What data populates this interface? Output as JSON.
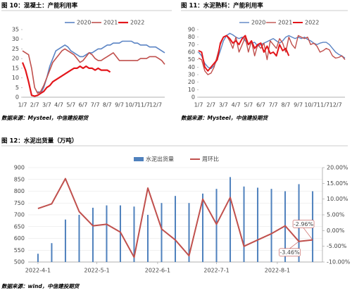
{
  "chart_data": [
    {
      "type": "line",
      "title": "图 10：混凝土：产能利用率",
      "source": "数据来源：Mysteel，中信建投期货",
      "categories": [
        "1/7",
        null,
        null,
        null,
        "2/7",
        null,
        null,
        null,
        "3/7",
        null,
        null,
        null,
        "4/7",
        null,
        null,
        null,
        "5/7",
        null,
        null,
        null,
        "6/7",
        null,
        null,
        null,
        "7/7",
        null,
        null,
        null,
        "8/7",
        null,
        null,
        null,
        "9/7",
        null,
        null,
        null,
        "10/7",
        null,
        null,
        null,
        "11/7",
        null,
        null,
        null,
        "12/7",
        null,
        null,
        null
      ],
      "ylim": [
        0,
        35
      ],
      "yticks": [
        0,
        5,
        10,
        15,
        20,
        25,
        30,
        35
      ],
      "series": [
        {
          "name": "2020",
          "color": "#5b84c4",
          "width": 1.6,
          "values": [
            null,
            null,
            null,
            null,
            null,
            3,
            2,
            5,
            10,
            16,
            20,
            24,
            25,
            26,
            27,
            26,
            24,
            23,
            22,
            21,
            21,
            22,
            23,
            23,
            24,
            25,
            25,
            26,
            27,
            27,
            28,
            28,
            28,
            29,
            29,
            29,
            29,
            28,
            28,
            27,
            27,
            27,
            26,
            26,
            26,
            25,
            24,
            23
          ]
        },
        {
          "name": "2021",
          "color": "#c0504d",
          "width": 1.6,
          "values": [
            24,
            23,
            22,
            15,
            5,
            2,
            3,
            6,
            10,
            14,
            18,
            20,
            22,
            24,
            25,
            24,
            23,
            22,
            20,
            18,
            19,
            21,
            23,
            22,
            20,
            19,
            19,
            20,
            21,
            22,
            23,
            21,
            19,
            19,
            19,
            19,
            19,
            19,
            19,
            20,
            20,
            20,
            21,
            21,
            21,
            20,
            19,
            17
          ]
        },
        {
          "name": "2022",
          "color": "#e3161b",
          "width": 2.2,
          "values": [
            18,
            14,
            8,
            1,
            0.5,
            1,
            2,
            3,
            5,
            6,
            8,
            9,
            10,
            11,
            12,
            13,
            14,
            15,
            15,
            16,
            15,
            16,
            15,
            15,
            14,
            15,
            14,
            14,
            14,
            13,
            null,
            null,
            null,
            null,
            null,
            null,
            null,
            null,
            null,
            null,
            null,
            null,
            null,
            null,
            null,
            null,
            null,
            null
          ]
        }
      ]
    },
    {
      "type": "line",
      "title": "图 11：水泥熟料：产能利用率",
      "source": "数据来源：Mysteel，中信建投期货",
      "categories": [
        "1/7",
        null,
        null,
        null,
        "2/7",
        null,
        null,
        null,
        "3/7",
        null,
        null,
        null,
        "4/7",
        null,
        null,
        null,
        "5/7",
        null,
        null,
        null,
        "6/7",
        null,
        null,
        null,
        "7/7",
        null,
        null,
        null,
        "8/7",
        null,
        null,
        null,
        "9/7",
        null,
        null,
        null,
        "10/7",
        null,
        null,
        null,
        "11/7",
        null,
        null,
        null,
        "12/7",
        null,
        null,
        null
      ],
      "ylim": [
        0,
        90
      ],
      "yticks": [
        0,
        10,
        20,
        30,
        40,
        50,
        60,
        70,
        80,
        90
      ],
      "series": [
        {
          "name": "2020",
          "color": "#5b84c4",
          "width": 1.4,
          "values": [
            60,
            55,
            45,
            40,
            38,
            42,
            50,
            62,
            75,
            82,
            85,
            83,
            80,
            78,
            80,
            75,
            70,
            72,
            73,
            68,
            70,
            72,
            74,
            76,
            78,
            75,
            72,
            75,
            80,
            82,
            80,
            78,
            80,
            78,
            80,
            77,
            75,
            72,
            70,
            72,
            73,
            73,
            70,
            65,
            60,
            57,
            55,
            52
          ]
        },
        {
          "name": "2021",
          "color": "#c0504d",
          "width": 1.4,
          "values": [
            52,
            50,
            35,
            30,
            32,
            40,
            55,
            70,
            80,
            82,
            75,
            65,
            80,
            60,
            70,
            80,
            60,
            75,
            55,
            70,
            65,
            72,
            50,
            75,
            70,
            65,
            78,
            72,
            60,
            80,
            70,
            65,
            82,
            80,
            78,
            80,
            70,
            72,
            68,
            60,
            62,
            65,
            63,
            55,
            52,
            53,
            55,
            50
          ]
        },
        {
          "name": "2022",
          "color": "#e3161b",
          "width": 2,
          "values": [
            62,
            60,
            40,
            35,
            40,
            45,
            50,
            72,
            80,
            82,
            78,
            72,
            75,
            70,
            78,
            82,
            70,
            75,
            65,
            70,
            72,
            60,
            68,
            58,
            60,
            55,
            70,
            62,
            65,
            55,
            null,
            null,
            null,
            null,
            null,
            null,
            null,
            null,
            null,
            null,
            null,
            null,
            null,
            null,
            null,
            null,
            null,
            null
          ]
        }
      ]
    },
    {
      "type": "combo",
      "title": "图 12：水泥出货量（万吨）",
      "source": "数据来源：wind，中信建投期货",
      "x": [
        "2022-04-01",
        "2022-04-08",
        "2022-04-15",
        "2022-04-22",
        "2022-04-29",
        "2022-05-06",
        "2022-05-13",
        "2022-05-20",
        "2022-05-27",
        "2022-06-03",
        "2022-06-10",
        "2022-06-17",
        "2022-06-24",
        "2022-07-01",
        "2022-07-08",
        "2022-07-15",
        "2022-07-22",
        "2022-07-29",
        "2022-08-05",
        "2022-08-12",
        "2022-08-19"
      ],
      "xlim": [
        "2022-03-27",
        "2022-08-24"
      ],
      "xticks": [
        {
          "value": "2022-04-01",
          "label": "2022-4-1"
        },
        {
          "value": "2022-05-01",
          "label": "2022-5-1"
        },
        {
          "value": "2022-06-01",
          "label": "2022-6-1"
        },
        {
          "value": "2022-07-01",
          "label": "2022-7-1"
        },
        {
          "value": "2022-08-01",
          "label": "2022-8-1"
        }
      ],
      "ylim": [
        500,
        900
      ],
      "yticks": [
        500,
        550,
        600,
        650,
        700,
        750,
        800,
        850,
        900
      ],
      "y2lim": [
        -10,
        20
      ],
      "y2ticks": [
        {
          "value": -10,
          "label": "-10.00%"
        },
        {
          "value": -5,
          "label": "-5.00%"
        },
        {
          "value": 0,
          "label": "0.00%"
        },
        {
          "value": 5,
          "label": "5.00%"
        },
        {
          "value": 10,
          "label": "10.00%"
        },
        {
          "value": 15,
          "label": "15.00%"
        },
        {
          "value": 20,
          "label": "20.00%"
        }
      ],
      "grid": true,
      "series": [
        {
          "name": "水泥出货量",
          "type": "bar",
          "color": "#4f81bd",
          "values": [
            535,
            580,
            680,
            700,
            730,
            740,
            740,
            735,
            700,
            750,
            780,
            750,
            790,
            810,
            860,
            820,
            815,
            810,
            800,
            830,
            800
          ]
        },
        {
          "name": "周环比",
          "type": "line",
          "axis": "y2",
          "color": "#c0504d",
          "values": [
            7,
            8.5,
            16.5,
            6,
            1.5,
            2,
            -0.5,
            -8.5,
            13.5,
            0.5,
            -3,
            -8,
            10,
            2,
            10.5,
            -5,
            -3,
            -1,
            1.5,
            -3.46,
            -2.96
          ],
          "value_labels": [
            null,
            null,
            null,
            null,
            null,
            null,
            null,
            null,
            null,
            null,
            null,
            null,
            null,
            null,
            null,
            null,
            null,
            null,
            null,
            "-3.46%",
            "-2.96%"
          ]
        }
      ]
    }
  ]
}
